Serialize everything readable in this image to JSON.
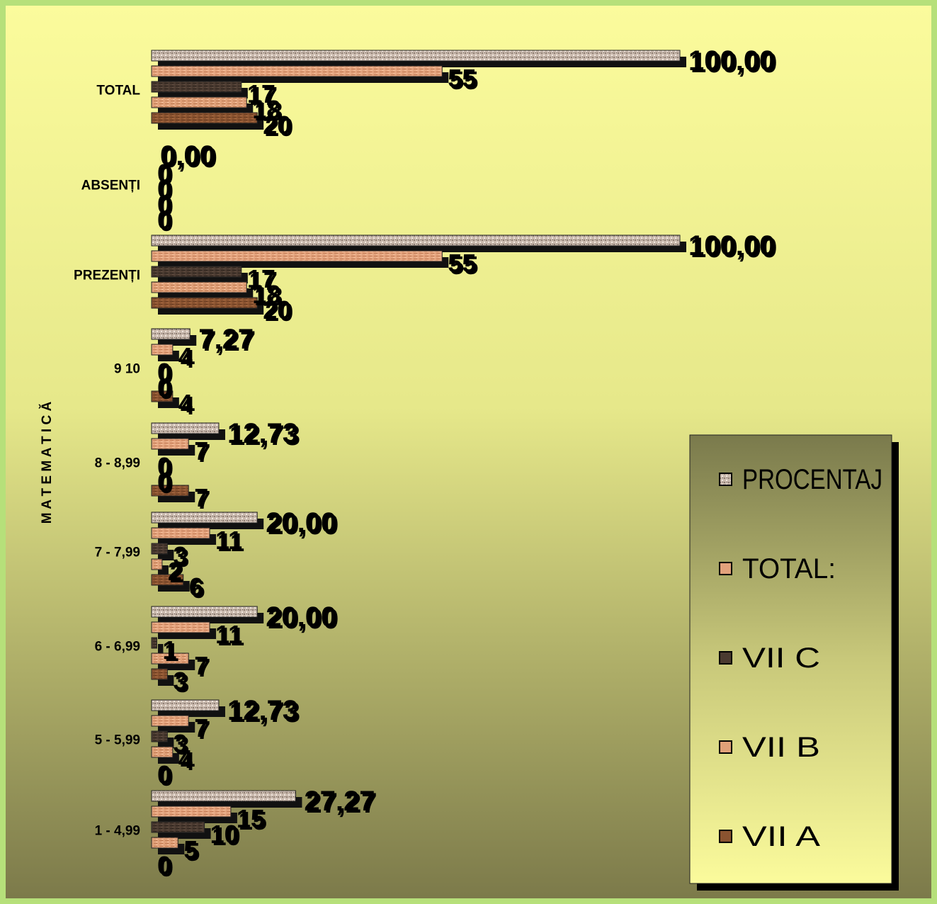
{
  "chart_data": {
    "type": "bar",
    "orientation": "horizontal",
    "ylabel": "M A T E M A T I C Ă",
    "categories": [
      "TOTAL",
      "ABSENȚI",
      "PREZENȚI",
      "9    10",
      "8 - 8,99",
      "7 - 7,99",
      "6 - 6,99",
      "5 - 5,99",
      "1 - 4,99"
    ],
    "series": [
      {
        "name": "PROCENTAJ",
        "values": [
          100,
          0,
          100,
          7.27,
          12.73,
          20,
          20,
          12.73,
          27.27
        ],
        "labels": [
          "100,00",
          "0,00",
          "100,00",
          "7,27",
          "12,73",
          "20,00",
          "20,00",
          "12,73",
          "27,27"
        ]
      },
      {
        "name": "TOTAL:",
        "values": [
          55,
          0,
          55,
          4,
          7,
          11,
          11,
          7,
          15
        ],
        "labels": [
          "55",
          "0",
          "55",
          "4",
          "7",
          "11",
          "11",
          "7",
          "15"
        ]
      },
      {
        "name": "VII C",
        "values": [
          17,
          0,
          17,
          0,
          0,
          3,
          1,
          3,
          10
        ],
        "labels": [
          "17",
          "0",
          "17",
          "0",
          "0",
          "3",
          "1",
          "3",
          "10"
        ]
      },
      {
        "name": "VII B",
        "values": [
          18,
          0,
          18,
          0,
          0,
          2,
          7,
          4,
          5
        ],
        "labels": [
          "18",
          "0",
          "18",
          "0",
          "0",
          "2",
          "7",
          "4",
          "5"
        ]
      },
      {
        "name": "VII A",
        "values": [
          20,
          0,
          20,
          4,
          7,
          6,
          3,
          0,
          0
        ],
        "labels": [
          "20",
          "0",
          "20",
          "4",
          "7",
          "6",
          "3",
          "0",
          "0"
        ]
      }
    ],
    "xlim": [
      0,
      100
    ],
    "legend": "right",
    "grid": false,
    "colors": {
      "PROCENTAJ": "#c8b8ac",
      "TOTAL:": "#e2a07a",
      "VII C": "#4a3a30",
      "VII B": "#e0a078",
      "VII A": "#8a5330",
      "background_top": "#fbfb9c",
      "background_bottom": "#7c7a4a",
      "border": "#b6e07a"
    }
  }
}
